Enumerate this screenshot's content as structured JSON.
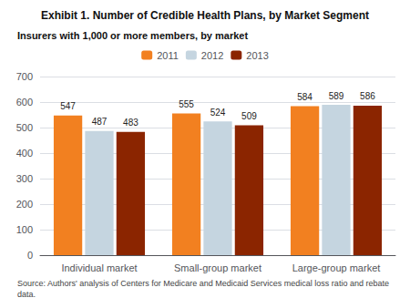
{
  "chart_data": {
    "type": "bar",
    "title": "Exhibit 1. Number of Credible Health Plans, by Market Segment",
    "subtitle": "Insurers with 1,000 or more members, by market",
    "footnote": "Source: Authors' analysis of Centers for Medicare and Medicaid Services medical loss ratio and rebate data.",
    "categories": [
      "Individual market",
      "Small-group market",
      "Large-group market"
    ],
    "series": [
      {
        "name": "2011",
        "color": "#F28020",
        "values": [
          547,
          555,
          584
        ]
      },
      {
        "name": "2012",
        "color": "#C5D5E0",
        "values": [
          487,
          524,
          589
        ]
      },
      {
        "name": "2013",
        "color": "#8B2500",
        "values": [
          483,
          509,
          586
        ]
      }
    ],
    "ylim": [
      0,
      700
    ],
    "yticks": [
      0,
      100,
      200,
      300,
      400,
      500,
      600,
      700
    ],
    "grid": true,
    "legend": "top",
    "data_labels": true
  }
}
